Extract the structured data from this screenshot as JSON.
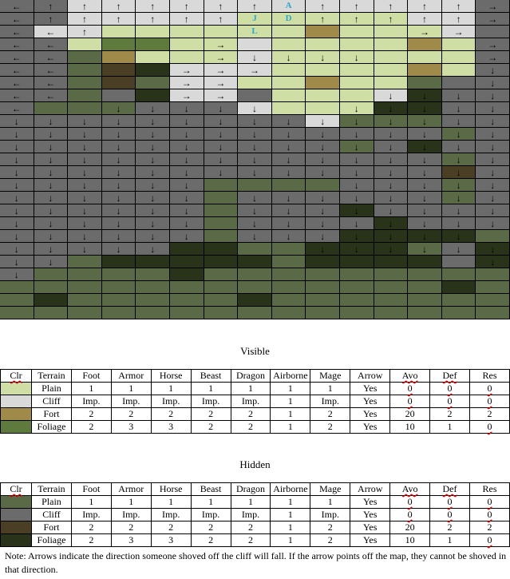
{
  "map": {
    "colors": {
      "P": "#cfdea4",
      "C": "#d9d9d9",
      "F": "#a08a4a",
      "G": "#5e7a3c",
      "p": "#5a6a46",
      "c": "#6b6b6b",
      "f": "#4a3f25",
      "g": "#28331a"
    },
    "rows": [
      {
        "t": "ccCCCCCCCCCCCCc",
        "a": "←↑↑↑↑↑↑↑↑↑↑↑↑↑→"
      },
      {
        "t": "ccCCCCCPPPPPCCc",
        "a": "←↑↑↑↑↑↑  ↑↑↑↑↑→"
      },
      {
        "t": "cCCPPPPPPFPPPCc",
        "a": "←←↑         →→"
      },
      {
        "t": "ccPGGPPCPPPPFPc",
        "a": "←←    →       →"
      },
      {
        "t": "ccpFPPPCPPPPPPc",
        "a": "←←    →↓↓↓↓   →"
      },
      {
        "t": "ccpfgCCCPPPPFPc",
        "a": "←←   →→→      ↓"
      },
      {
        "t": "ccpfpCCPPFPPpcc",
        "a": "←←   →→       ↓"
      },
      {
        "t": "ccpcgCCcPPPCgcc",
        "a": "←←   →→    ↓↓↓↓"
      },
      {
        "t": "cpppcccCPPPggcc",
        "a": "←  ↓↓↓↓↓  ↓↓↓↓↓"
      },
      {
        "t": "cccccccccCpppcc",
        "a": "↓↓↓↓↓↓↓↓↓↓↓↓↓↓↓"
      },
      {
        "t": "cccccccccccccpc",
        "a": "↓↓↓↓↓↓↓↓↓↓↓↓↓↓↓"
      },
      {
        "t": "ccccccccccpcgcc",
        "a": "↓↓↓↓↓↓↓↓↓↓↓↓↓↓↓"
      },
      {
        "t": "cccccccccccccpc",
        "a": "↓↓↓↓↓↓↓↓↓↓↓↓↓↓↓"
      },
      {
        "t": "cccccccccccccfc",
        "a": "↓↓↓↓↓↓↓↓↓↓↓↓↓↓↓"
      },
      {
        "t": "ccccccppppcccpc",
        "a": "↓↓↓↓↓↓    ↓↓↓↓↓"
      },
      {
        "t": "ccccccpccccccpc",
        "a": "↓↓↓↓↓↓ ↓↓↓↓↓↓↓↓"
      },
      {
        "t": "ccccccpcccgcccc",
        "a": "↓↓↓↓↓↓ ↓↓↓↓↓↓↓↓"
      },
      {
        "t": "ccccccpccccgccc",
        "a": "↓↓↓↓↓↓ ↓↓↓↓↓↓↓↓"
      },
      {
        "t": "ccccccpcccggggp",
        "a": "↓↓↓↓↓↓ ↓↓↓↓↓↓↓ "
      },
      {
        "t": "cccccggppgggpcg",
        "a": "↓↓↓↓↓    ↓↓↓↓↓↓"
      },
      {
        "t": "ccpgggggpggggcg",
        "a": "↓↓            ↓"
      },
      {
        "t": "cppppgppppppppp",
        "a": "↓              "
      },
      {
        "t": "pppppppppppppgp",
        "a": "               "
      },
      {
        "t": "pgpppppgppppppp",
        "a": "               "
      },
      {
        "t": "ppppppppppppppp",
        "a": "               "
      }
    ],
    "markers": [
      {
        "row": 0,
        "col": 8,
        "label": "A"
      },
      {
        "row": 1,
        "col": 7,
        "label": "J"
      },
      {
        "row": 1,
        "col": 8,
        "label": "D"
      },
      {
        "row": 2,
        "col": 7,
        "label": "L"
      }
    ]
  },
  "visible": {
    "title": "Visible",
    "headers": [
      "Clr",
      "Terrain",
      "Foot",
      "Armor",
      "Horse",
      "Beast",
      "Dragon",
      "Airborne",
      "Mage",
      "Arrow",
      "Avo",
      "Def",
      "Res"
    ],
    "rows": [
      {
        "swatch": "#cfdea4",
        "cells": [
          "Plain",
          "1",
          "1",
          "1",
          "1",
          "1",
          "1",
          "1",
          "Yes",
          "0",
          "0",
          "0"
        ]
      },
      {
        "swatch": "#d9d9d9",
        "cells": [
          "Cliff",
          "Imp.",
          "Imp.",
          "Imp.",
          "Imp.",
          "Imp.",
          "1",
          "Imp.",
          "Yes",
          "0",
          "0",
          "0"
        ]
      },
      {
        "swatch": "#a08a4a",
        "cells": [
          "Fort",
          "2",
          "2",
          "2",
          "2",
          "2",
          "1",
          "2",
          "Yes",
          "20",
          "2",
          "2"
        ]
      },
      {
        "swatch": "#5e7a3c",
        "cells": [
          "Foliage",
          "2",
          "3",
          "3",
          "2",
          "2",
          "1",
          "2",
          "Yes",
          "10",
          "1",
          "0"
        ]
      }
    ]
  },
  "hidden": {
    "title": "Hidden",
    "headers": [
      "Clr",
      "Terrain",
      "Foot",
      "Armor",
      "Horse",
      "Beast",
      "Dragon",
      "Airborne",
      "Mage",
      "Arrow",
      "Avo",
      "Def",
      "Res"
    ],
    "rows": [
      {
        "swatch": "#5a6a46",
        "cells": [
          "Plain",
          "1",
          "1",
          "1",
          "1",
          "1",
          "1",
          "1",
          "Yes",
          "0",
          "0",
          "0"
        ]
      },
      {
        "swatch": "#6b6b6b",
        "cells": [
          "Cliff",
          "Imp.",
          "Imp.",
          "Imp.",
          "Imp.",
          "Imp.",
          "1",
          "Imp.",
          "Yes",
          "0",
          "0",
          "0"
        ]
      },
      {
        "swatch": "#4a3f25",
        "cells": [
          "Fort",
          "2",
          "2",
          "2",
          "2",
          "2",
          "1",
          "2",
          "Yes",
          "20",
          "2",
          "2"
        ]
      },
      {
        "swatch": "#28331a",
        "cells": [
          "Foliage",
          "2",
          "3",
          "3",
          "2",
          "2",
          "1",
          "2",
          "Yes",
          "10",
          "1",
          "0"
        ]
      }
    ]
  },
  "note": "Note: Arrows indicate the direction someone shoved off the cliff will fall. If the arrow points off the map, they cannot be shoved in that direction."
}
